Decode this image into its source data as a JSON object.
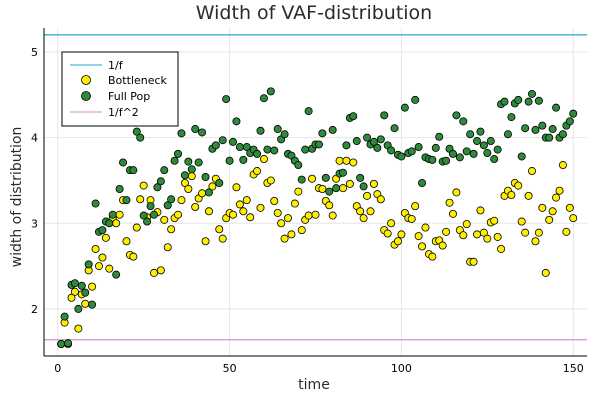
{
  "chart_data": {
    "type": "scatter",
    "title": "Width of VAF-distribution",
    "xlabel": "time",
    "ylabel": "width of distribution",
    "xlim": [
      -4,
      154
    ],
    "ylim": [
      1.45,
      5.28
    ],
    "x_ticks": [
      0,
      50,
      100,
      150
    ],
    "y_ticks": [
      2,
      3,
      4,
      5
    ],
    "grid": true,
    "legend_position": "top-left",
    "colors": {
      "inv_f": "#2aa3cf",
      "bottleneck": "#ffee00",
      "full_pop": "#2e8b3a",
      "inv_f2": "#d68fd6",
      "frame": "#000000",
      "grid": "#e6e6e6"
    },
    "hlines": [
      {
        "name": "1/f",
        "y": 5.2
      },
      {
        "name": "1/f^2",
        "y": 1.64
      }
    ],
    "series": [
      {
        "name": "Bottleneck",
        "x": [
          1,
          2,
          3,
          4,
          5,
          6,
          7,
          8,
          9,
          10,
          11,
          12,
          13,
          14,
          15,
          16,
          17,
          18,
          19,
          20,
          21,
          22,
          23,
          24,
          25,
          26,
          27,
          28,
          29,
          30,
          31,
          32,
          33,
          34,
          35,
          36,
          37,
          38,
          39,
          40,
          41,
          42,
          43,
          44,
          45,
          46,
          47,
          48,
          49,
          50,
          51,
          52,
          53,
          54,
          55,
          56,
          57,
          58,
          59,
          60,
          61,
          62,
          63,
          64,
          65,
          66,
          67,
          68,
          69,
          70,
          71,
          72,
          73,
          74,
          75,
          76,
          77,
          78,
          79,
          80,
          81,
          82,
          83,
          84,
          85,
          86,
          87,
          88,
          89,
          90,
          91,
          92,
          93,
          94,
          95,
          96,
          97,
          98,
          99,
          100,
          101,
          102,
          103,
          104,
          105,
          106,
          107,
          108,
          109,
          110,
          111,
          112,
          113,
          114,
          115,
          116,
          117,
          118,
          119,
          120,
          121,
          122,
          123,
          124,
          125,
          126,
          127,
          128,
          129,
          130,
          131,
          132,
          133,
          134,
          135,
          136,
          137,
          138,
          139,
          140,
          141,
          142,
          143,
          144,
          145,
          146,
          147,
          148,
          149,
          150
        ],
        "y": [
          1.59,
          1.84,
          1.59,
          2.13,
          2.2,
          1.77,
          2.17,
          2.06,
          2.45,
          2.26,
          2.7,
          2.5,
          2.6,
          2.83,
          2.47,
          3.06,
          3.0,
          3.1,
          3.27,
          2.79,
          2.63,
          2.61,
          2.95,
          3.28,
          3.44,
          3.07,
          3.27,
          2.42,
          3.13,
          2.45,
          3.04,
          2.72,
          2.93,
          3.06,
          3.1,
          3.27,
          3.47,
          3.4,
          3.55,
          3.19,
          3.29,
          3.35,
          2.79,
          3.14,
          3.43,
          3.52,
          2.93,
          2.82,
          3.06,
          3.12,
          3.1,
          3.42,
          3.22,
          3.14,
          3.27,
          3.07,
          3.57,
          3.61,
          3.18,
          3.75,
          3.47,
          3.5,
          3.26,
          3.12,
          3.0,
          2.82,
          3.06,
          2.87,
          3.23,
          3.37,
          2.92,
          3.04,
          3.09,
          3.52,
          3.1,
          3.41,
          3.4,
          3.26,
          3.21,
          3.09,
          3.52,
          3.73,
          3.41,
          3.73,
          3.46,
          3.71,
          3.2,
          3.14,
          3.06,
          3.32,
          3.14,
          3.46,
          3.34,
          3.28,
          2.92,
          2.88,
          3.0,
          2.75,
          2.79,
          2.87,
          3.12,
          3.06,
          3.05,
          3.2,
          2.85,
          2.73,
          2.95,
          2.64,
          2.61,
          2.79,
          2.8,
          2.74,
          2.9,
          3.24,
          3.11,
          3.36,
          2.92,
          2.86,
          2.99,
          2.55,
          2.55,
          2.87,
          3.15,
          2.89,
          2.82,
          3.01,
          3.03,
          2.84,
          2.7,
          3.32,
          3.38,
          3.33,
          3.47,
          3.44,
          3.02,
          2.89,
          3.32,
          3.61,
          2.79,
          2.89,
          3.18,
          2.42,
          3.04,
          3.14,
          3.3,
          3.38,
          3.68,
          2.9,
          3.18,
          3.06
        ]
      },
      {
        "name": "Full Pop",
        "x": [
          1,
          2,
          3,
          4,
          5,
          6,
          7,
          8,
          9,
          10,
          11,
          12,
          13,
          14,
          15,
          16,
          17,
          18,
          19,
          20,
          21,
          22,
          23,
          24,
          25,
          26,
          27,
          28,
          29,
          30,
          31,
          32,
          33,
          34,
          35,
          36,
          37,
          38,
          39,
          40,
          41,
          42,
          43,
          44,
          45,
          46,
          47,
          48,
          49,
          50,
          51,
          52,
          53,
          54,
          55,
          56,
          57,
          58,
          59,
          60,
          61,
          62,
          63,
          64,
          65,
          66,
          67,
          68,
          69,
          70,
          71,
          72,
          73,
          74,
          75,
          76,
          77,
          78,
          79,
          80,
          81,
          82,
          83,
          84,
          85,
          86,
          87,
          88,
          89,
          90,
          91,
          92,
          93,
          94,
          95,
          96,
          97,
          98,
          99,
          100,
          101,
          102,
          103,
          104,
          105,
          106,
          107,
          108,
          109,
          110,
          111,
          112,
          113,
          114,
          115,
          116,
          117,
          118,
          119,
          120,
          121,
          122,
          123,
          124,
          125,
          126,
          127,
          128,
          129,
          130,
          131,
          132,
          133,
          134,
          135,
          136,
          137,
          138,
          139,
          140,
          141,
          142,
          143,
          144,
          145,
          146,
          147,
          148,
          149,
          150
        ],
        "y": [
          1.59,
          1.91,
          1.6,
          2.28,
          2.3,
          2.0,
          2.27,
          2.19,
          2.52,
          2.05,
          3.23,
          2.9,
          2.92,
          3.02,
          3.0,
          3.1,
          2.4,
          3.4,
          3.71,
          3.27,
          3.62,
          3.62,
          4.07,
          4.0,
          3.09,
          3.02,
          3.2,
          3.1,
          3.42,
          3.49,
          3.62,
          3.21,
          3.28,
          3.73,
          3.81,
          4.05,
          3.56,
          3.72,
          3.63,
          4.1,
          3.71,
          4.06,
          3.54,
          3.36,
          3.87,
          3.91,
          3.47,
          3.97,
          4.45,
          3.73,
          3.95,
          4.19,
          3.89,
          3.74,
          3.89,
          3.82,
          3.86,
          3.81,
          4.08,
          4.46,
          3.86,
          4.54,
          3.85,
          4.1,
          3.98,
          4.04,
          3.81,
          3.79,
          3.73,
          3.68,
          3.51,
          3.86,
          4.31,
          3.87,
          3.92,
          3.92,
          4.05,
          3.53,
          3.37,
          4.09,
          3.41,
          3.58,
          3.59,
          3.91,
          4.23,
          4.25,
          3.96,
          3.53,
          3.43,
          4.0,
          3.92,
          3.95,
          3.88,
          3.98,
          4.26,
          3.91,
          3.85,
          4.11,
          3.8,
          3.78,
          4.35,
          3.82,
          3.84,
          4.44,
          3.89,
          3.47,
          3.77,
          3.75,
          3.74,
          3.88,
          4.01,
          3.72,
          3.73,
          3.87,
          3.81,
          4.26,
          3.77,
          4.19,
          3.84,
          4.04,
          3.81,
          3.96,
          4.07,
          3.91,
          3.82,
          3.96,
          3.75,
          3.86,
          4.39,
          4.42,
          4.04,
          4.24,
          4.4,
          4.44,
          3.78,
          4.11,
          4.42,
          4.51,
          4.09,
          4.43,
          4.14,
          4.0,
          4.0,
          4.1,
          4.35,
          4.0,
          4.04,
          4.14,
          4.19,
          4.28
        ]
      }
    ]
  }
}
